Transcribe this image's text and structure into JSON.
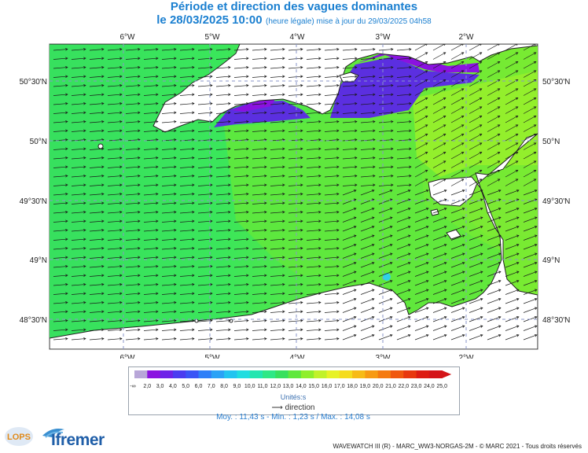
{
  "header": {
    "title": "Période et direction des vagues dominantes",
    "date": "le 28/03/2025 10:00",
    "subtitle": "(heure légale) mise à jour du 29/03/2025 04h58"
  },
  "map": {
    "lon_labels": [
      "6°W",
      "5°W",
      "4°W",
      "3°W",
      "2°W"
    ],
    "lat_labels": [
      "50°30'N",
      "50°N",
      "49°30'N",
      "49°N",
      "48°30'N"
    ],
    "colors": {
      "sea_high": "#37e05e",
      "sea_mid": "#5fe83d",
      "sea_low": "#8fef2b",
      "land": "#ffffff",
      "low_period": "#5b2fe0",
      "frame": "#444444"
    }
  },
  "legend": {
    "ticks": [
      "-∞",
      "2,0",
      "3,0",
      "4,0",
      "5,0",
      "6,0",
      "7,0",
      "8,0",
      "9,0",
      "10,0",
      "11,0",
      "12,0",
      "13,0",
      "14,0",
      "15,0",
      "16,0",
      "17,0",
      "18,0",
      "19,0",
      "20,0",
      "21,0",
      "22,0",
      "23,0",
      "24,0",
      "25,0",
      "∞"
    ],
    "units": "Unités:s",
    "direction_label": "direction",
    "stats": "Moy. : 11,43 s   -   Min. : 1,23 s / Max. : 14,08 s"
  },
  "footer": {
    "credit": "WAVEWATCH III (R) - MARC_WW3-NORGAS-2M - © MARC 2021 - Tous droits réservés",
    "lops_logo": "LOPS",
    "ifremer_logo": "Ifremer"
  }
}
